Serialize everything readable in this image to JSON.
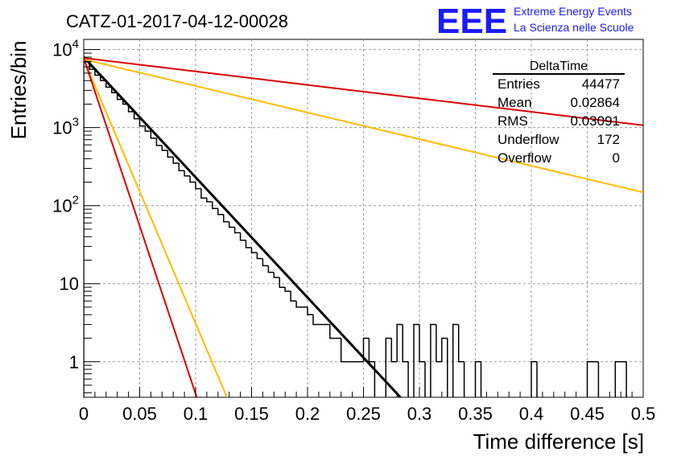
{
  "header": {
    "run_title": "CATZ-01-2017-04-12-00028",
    "logo_text": "EEE",
    "logo_line1": "Extreme Energy Events",
    "logo_line2": "La Scienza nelle Scuole",
    "logo_color": "#1a1aff"
  },
  "stats": {
    "title": "DeltaTime",
    "rows": [
      {
        "label": "Entries",
        "value": "44477"
      },
      {
        "label": "Mean",
        "value": "0.02864"
      },
      {
        "label": "RMS",
        "value": "0.03091"
      },
      {
        "label": "Underflow",
        "value": "172"
      },
      {
        "label": "Overflow",
        "value": "0"
      }
    ]
  },
  "chart_data": {
    "type": "line",
    "xlabel": "Time difference [s]",
    "ylabel": "Entries/bin",
    "xlim": [
      0,
      0.5
    ],
    "ylim": [
      0.35,
      13500
    ],
    "log_y": true,
    "grid": true,
    "x_ticks": [
      "0",
      "0.05",
      "0.1",
      "0.15",
      "0.2",
      "0.25",
      "0.3",
      "0.35",
      "0.4",
      "0.45",
      "0.5"
    ],
    "y_ticks": [
      {
        "value": 1,
        "label": "1"
      },
      {
        "value": 10,
        "label": "10"
      },
      {
        "value": 100,
        "label": "10^2"
      },
      {
        "value": 1000,
        "label": "10^3"
      },
      {
        "value": 10000,
        "label": "10^4"
      }
    ],
    "histogram": {
      "bin_width": 0.005,
      "color": "#000000",
      "counts": [
        7000,
        5600,
        4700,
        4000,
        3300,
        2800,
        2300,
        2000,
        1600,
        1300,
        1050,
        900,
        730,
        590,
        510,
        420,
        350,
        280,
        240,
        200,
        165,
        125,
        112,
        92,
        77,
        62,
        53,
        45,
        36,
        29,
        25,
        21,
        17,
        14,
        12,
        9,
        8,
        6,
        5,
        5,
        4,
        3,
        3,
        3,
        2,
        2,
        1,
        1,
        1,
        1,
        2,
        1,
        0,
        0,
        2,
        1,
        3,
        1,
        0,
        3,
        1,
        0,
        3,
        1,
        2,
        0,
        3,
        1,
        0,
        0,
        1,
        0,
        0,
        0,
        0,
        0,
        0,
        0,
        0,
        0,
        1,
        0,
        0,
        0,
        0,
        0,
        0,
        0,
        0,
        0,
        1,
        1,
        0,
        0,
        0,
        1,
        1,
        0,
        0,
        0
      ]
    },
    "series": [
      {
        "color": "#000000",
        "x": [
          0,
          0.283
        ],
        "y": [
          8000,
          0.35
        ]
      },
      {
        "color": "#dd0000",
        "x": [
          0,
          0.5
        ],
        "y": [
          7800,
          1070
        ]
      },
      {
        "color": "#ffbb00",
        "x": [
          0,
          0.5
        ],
        "y": [
          7500,
          148
        ]
      },
      {
        "color": "#ffbb00",
        "x": [
          0,
          0.128
        ],
        "y": [
          7500,
          0.35
        ]
      },
      {
        "color": "#dd0000",
        "x": [
          0,
          0.101
        ],
        "y": [
          7800,
          0.35
        ]
      }
    ]
  }
}
